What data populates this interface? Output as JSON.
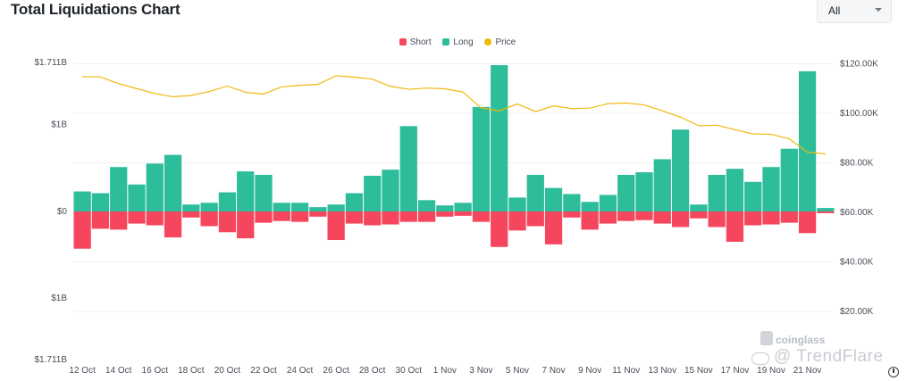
{
  "header": {
    "title": "Total Liquidations Chart",
    "filter_value": "All"
  },
  "watermark": {
    "brand": "coinglass",
    "overlay": "@ TrendFlare"
  },
  "colors": {
    "short": "#f6465d",
    "long": "#2ebd9b",
    "price": "#f0b90b",
    "grid": "#f0f1f2"
  },
  "chart_data": {
    "type": "bar",
    "legend": [
      "Short",
      "Long",
      "Price"
    ],
    "legend_position": "top-center",
    "categories": [
      "12 Oct",
      "13 Oct",
      "14 Oct",
      "15 Oct",
      "16 Oct",
      "17 Oct",
      "18 Oct",
      "19 Oct",
      "20 Oct",
      "21 Oct",
      "22 Oct",
      "23 Oct",
      "24 Oct",
      "25 Oct",
      "26 Oct",
      "27 Oct",
      "28 Oct",
      "29 Oct",
      "30 Oct",
      "31 Oct",
      "1 Nov",
      "2 Nov",
      "3 Nov",
      "4 Nov",
      "5 Nov",
      "6 Nov",
      "7 Nov",
      "8 Nov",
      "9 Nov",
      "10 Nov",
      "11 Nov",
      "12 Nov",
      "13 Nov",
      "14 Nov",
      "15 Nov",
      "16 Nov",
      "17 Nov",
      "18 Nov",
      "19 Nov",
      "20 Nov",
      "21 Nov",
      "22 Nov"
    ],
    "x_tick_labels": [
      "12 Oct",
      "14 Oct",
      "16 Oct",
      "18 Oct",
      "20 Oct",
      "22 Oct",
      "24 Oct",
      "26 Oct",
      "28 Oct",
      "30 Oct",
      "1 Nov",
      "3 Nov",
      "5 Nov",
      "7 Nov",
      "9 Nov",
      "11 Nov",
      "13 Nov",
      "15 Nov",
      "17 Nov",
      "19 Nov",
      "21 Nov"
    ],
    "series": [
      {
        "name": "Long",
        "axis": "left",
        "values": [
          0.23,
          0.21,
          0.51,
          0.31,
          0.55,
          0.65,
          0.08,
          0.1,
          0.22,
          0.46,
          0.42,
          0.1,
          0.1,
          0.05,
          0.08,
          0.21,
          0.41,
          0.48,
          0.98,
          0.13,
          0.07,
          0.1,
          1.2,
          1.68,
          0.16,
          0.42,
          0.27,
          0.2,
          0.11,
          0.19,
          0.42,
          0.45,
          0.6,
          0.94,
          0.08,
          0.42,
          0.49,
          0.34,
          0.51,
          0.72,
          1.61,
          0.04
        ]
      },
      {
        "name": "Short",
        "axis": "left",
        "values": [
          0.43,
          0.2,
          0.21,
          0.14,
          0.16,
          0.3,
          0.07,
          0.17,
          0.24,
          0.31,
          0.13,
          0.11,
          0.12,
          0.06,
          0.33,
          0.14,
          0.16,
          0.15,
          0.12,
          0.12,
          0.06,
          0.05,
          0.12,
          0.41,
          0.22,
          0.17,
          0.38,
          0.07,
          0.21,
          0.14,
          0.11,
          0.1,
          0.14,
          0.18,
          0.08,
          0.18,
          0.35,
          0.16,
          0.15,
          0.13,
          0.25,
          0.02
        ]
      },
      {
        "name": "Price",
        "axis": "right",
        "values": [
          114800,
          114700,
          112000,
          110000,
          108000,
          106700,
          107200,
          108800,
          111000,
          108500,
          107800,
          110700,
          111300,
          111700,
          115200,
          114600,
          113800,
          110900,
          109700,
          110200,
          109900,
          108600,
          102200,
          101000,
          103800,
          100700,
          103000,
          101900,
          102100,
          103900,
          104200,
          103400,
          101000,
          98500,
          95000,
          95200,
          93400,
          91700,
          91500,
          89700,
          84300,
          83600
        ]
      }
    ],
    "ylim_left": [
      -1.711,
      1.711
    ],
    "y_tick_labels_left": [
      "$1.711B",
      "$1B",
      "$0",
      "$1B",
      "$1.711B"
    ],
    "y_tick_values_left": [
      1.711,
      1,
      0,
      -1,
      -1.711
    ],
    "ylim_right": [
      0,
      120000
    ],
    "y_tick_labels_right": [
      "$120.00K",
      "$100.00K",
      "$80.00K",
      "$60.00K",
      "$40.00K",
      "$20.00K"
    ],
    "y_tick_values_right": [
      120000,
      100000,
      80000,
      60000,
      40000,
      20000
    ],
    "grid": true
  }
}
